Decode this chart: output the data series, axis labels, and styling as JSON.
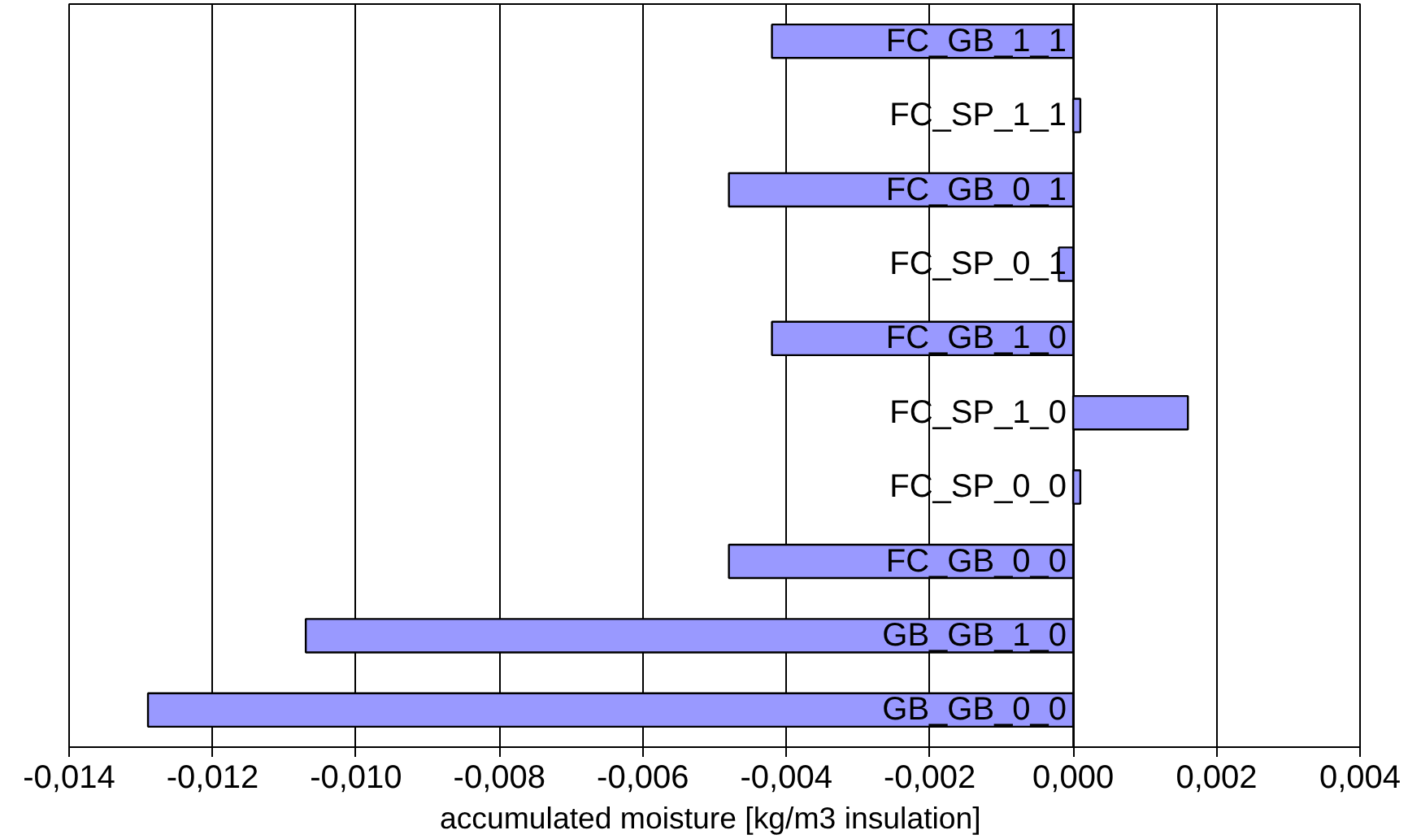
{
  "chart_data": {
    "type": "bar",
    "orientation": "horizontal",
    "xlabel": "accumulated moisture [kg/m3  insulation]",
    "categories": [
      "FC_GB_1_1",
      "FC_SP_1_1",
      "FC_GB_0_1",
      "FC_SP_0_1",
      "FC_GB_1_0",
      "FC_SP_1_0",
      "FC_SP_0_0",
      "FC_GB_0_0",
      "GB_GB_1_0",
      "GB_GB_0_0"
    ],
    "values": [
      -0.0042,
      0.0001,
      -0.0048,
      -0.0002,
      -0.0042,
      0.0016,
      0.0001,
      -0.0048,
      -0.0107,
      -0.0129
    ],
    "color": "#9999ff",
    "xlim": [
      -0.014,
      0.004
    ],
    "xticks": [
      {
        "value": -0.014,
        "label": "-0,014"
      },
      {
        "value": -0.012,
        "label": "-0,012"
      },
      {
        "value": -0.01,
        "label": "-0,010"
      },
      {
        "value": -0.008,
        "label": "-0,008"
      },
      {
        "value": -0.006,
        "label": "-0,006"
      },
      {
        "value": -0.004,
        "label": "-0,004"
      },
      {
        "value": -0.002,
        "label": "-0,002"
      },
      {
        "value": 0,
        "label": "0,000"
      },
      {
        "value": 0.002,
        "label": "0,002"
      },
      {
        "value": 0.004,
        "label": "0,004"
      }
    ],
    "grid": "x"
  }
}
